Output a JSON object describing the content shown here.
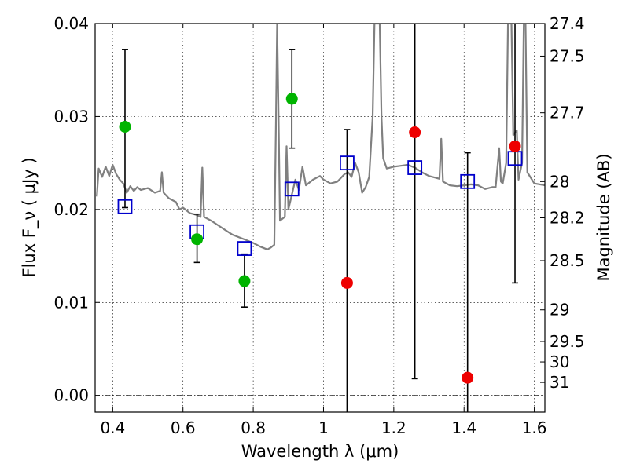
{
  "chart_data": {
    "type": "scatter",
    "xlabel": "Wavelength  λ (μm)",
    "ylabel": "Flux  F_ν  ( μJy )",
    "ylabel_right": "Magnitude (AB)",
    "xlim": [
      0.35,
      1.63
    ],
    "ylim": [
      -0.0018,
      0.04
    ],
    "grid": true,
    "x_ticks": [
      0.4,
      0.6,
      0.8,
      1.0,
      1.2,
      1.4,
      1.6
    ],
    "x_tick_labels": [
      "0.4",
      "0.6",
      "0.8",
      "1",
      "1.2",
      "1.4",
      "1.6"
    ],
    "y_ticks": [
      0.0,
      0.01,
      0.02,
      0.03,
      0.04
    ],
    "y_tick_labels": [
      "0.00",
      "0.01",
      "0.02",
      "0.03",
      "0.04"
    ],
    "mag_ticks": [
      {
        "label": "27.4",
        "flux": 0.04
      },
      {
        "label": "27.5",
        "flux": 0.0365
      },
      {
        "label": "27.7",
        "flux": 0.0304
      },
      {
        "label": "28",
        "flux": 0.023
      },
      {
        "label": "28.2",
        "flux": 0.0191
      },
      {
        "label": "28.5",
        "flux": 0.0145
      },
      {
        "label": "29",
        "flux": 0.0092
      },
      {
        "label": "29.5",
        "flux": 0.0058
      },
      {
        "label": "30",
        "flux": 0.0036
      },
      {
        "label": "31",
        "flux": 0.0014
      }
    ],
    "colors": {
      "green": "#00b400",
      "red": "#ee0000",
      "model": "#808080",
      "square": "#0000cc",
      "errorbar": "#000000"
    },
    "series": [
      {
        "marker": "circle",
        "color": "green",
        "points": [
          {
            "x": 0.435,
            "y": 0.0289,
            "ylo": 0.0202,
            "yhi": 0.0372
          },
          {
            "x": 0.64,
            "y": 0.0168,
            "ylo": 0.0143,
            "yhi": 0.0195
          },
          {
            "x": 0.775,
            "y": 0.0123,
            "ylo": 0.0095,
            "yhi": 0.0152
          },
          {
            "x": 0.91,
            "y": 0.0319,
            "ylo": 0.0266,
            "yhi": 0.0372
          }
        ]
      },
      {
        "marker": "circle",
        "color": "red",
        "points": [
          {
            "x": 1.067,
            "y": 0.0121,
            "ylo": -0.0018,
            "yhi": 0.0286
          },
          {
            "x": 1.26,
            "y": 0.0283,
            "ylo": 0.0018,
            "yhi": 0.04
          },
          {
            "x": 1.41,
            "y": 0.0019,
            "ylo": -0.0018,
            "yhi": 0.0261
          },
          {
            "x": 1.545,
            "y": 0.0268,
            "ylo": 0.0121,
            "yhi": 0.04
          }
        ]
      },
      {
        "marker": "square",
        "color": "square",
        "points": [
          {
            "x": 0.435,
            "y": 0.0203
          },
          {
            "x": 0.64,
            "y": 0.0176
          },
          {
            "x": 0.775,
            "y": 0.0158
          },
          {
            "x": 0.91,
            "y": 0.0222
          },
          {
            "x": 1.067,
            "y": 0.025
          },
          {
            "x": 1.26,
            "y": 0.0245
          },
          {
            "x": 1.41,
            "y": 0.023
          },
          {
            "x": 1.545,
            "y": 0.0255
          }
        ]
      },
      {
        "marker": "line",
        "color": "model",
        "points": [
          {
            "x": 0.355,
            "y": 0.0214
          },
          {
            "x": 0.36,
            "y": 0.0244
          },
          {
            "x": 0.37,
            "y": 0.0235
          },
          {
            "x": 0.38,
            "y": 0.0246
          },
          {
            "x": 0.39,
            "y": 0.0236
          },
          {
            "x": 0.4,
            "y": 0.0248
          },
          {
            "x": 0.41,
            "y": 0.0238
          },
          {
            "x": 0.42,
            "y": 0.0232
          },
          {
            "x": 0.43,
            "y": 0.0228
          },
          {
            "x": 0.44,
            "y": 0.0218
          },
          {
            "x": 0.45,
            "y": 0.0225
          },
          {
            "x": 0.46,
            "y": 0.022
          },
          {
            "x": 0.47,
            "y": 0.0224
          },
          {
            "x": 0.48,
            "y": 0.0221
          },
          {
            "x": 0.5,
            "y": 0.0223
          },
          {
            "x": 0.52,
            "y": 0.0218
          },
          {
            "x": 0.535,
            "y": 0.022
          },
          {
            "x": 0.54,
            "y": 0.024
          },
          {
            "x": 0.545,
            "y": 0.0218
          },
          {
            "x": 0.56,
            "y": 0.0212
          },
          {
            "x": 0.58,
            "y": 0.0208
          },
          {
            "x": 0.59,
            "y": 0.02
          },
          {
            "x": 0.6,
            "y": 0.0202
          },
          {
            "x": 0.62,
            "y": 0.0196
          },
          {
            "x": 0.64,
            "y": 0.0194
          },
          {
            "x": 0.65,
            "y": 0.0192
          },
          {
            "x": 0.655,
            "y": 0.0245
          },
          {
            "x": 0.66,
            "y": 0.0192
          },
          {
            "x": 0.68,
            "y": 0.0188
          },
          {
            "x": 0.7,
            "y": 0.0183
          },
          {
            "x": 0.72,
            "y": 0.0178
          },
          {
            "x": 0.74,
            "y": 0.0173
          },
          {
            "x": 0.76,
            "y": 0.017
          },
          {
            "x": 0.78,
            "y": 0.0167
          },
          {
            "x": 0.8,
            "y": 0.0164
          },
          {
            "x": 0.82,
            "y": 0.016
          },
          {
            "x": 0.84,
            "y": 0.0157
          },
          {
            "x": 0.85,
            "y": 0.0159
          },
          {
            "x": 0.86,
            "y": 0.0162
          },
          {
            "x": 0.865,
            "y": 0.03
          },
          {
            "x": 0.868,
            "y": 0.04
          },
          {
            "x": 0.872,
            "y": 0.03
          },
          {
            "x": 0.876,
            "y": 0.0188
          },
          {
            "x": 0.89,
            "y": 0.0192
          },
          {
            "x": 0.895,
            "y": 0.0268
          },
          {
            "x": 0.9,
            "y": 0.02
          },
          {
            "x": 0.92,
            "y": 0.0232
          },
          {
            "x": 0.93,
            "y": 0.0221
          },
          {
            "x": 0.94,
            "y": 0.0246
          },
          {
            "x": 0.95,
            "y": 0.0226
          },
          {
            "x": 0.97,
            "y": 0.0232
          },
          {
            "x": 0.99,
            "y": 0.0236
          },
          {
            "x": 1.0,
            "y": 0.0232
          },
          {
            "x": 1.02,
            "y": 0.0228
          },
          {
            "x": 1.04,
            "y": 0.023
          },
          {
            "x": 1.06,
            "y": 0.0238
          },
          {
            "x": 1.07,
            "y": 0.024
          },
          {
            "x": 1.08,
            "y": 0.0235
          },
          {
            "x": 1.09,
            "y": 0.025
          },
          {
            "x": 1.1,
            "y": 0.024
          },
          {
            "x": 1.11,
            "y": 0.0218
          },
          {
            "x": 1.12,
            "y": 0.0224
          },
          {
            "x": 1.13,
            "y": 0.0235
          },
          {
            "x": 1.14,
            "y": 0.03
          },
          {
            "x": 1.145,
            "y": 0.04
          },
          {
            "x": 1.16,
            "y": 0.04
          },
          {
            "x": 1.165,
            "y": 0.03
          },
          {
            "x": 1.17,
            "y": 0.0255
          },
          {
            "x": 1.18,
            "y": 0.0244
          },
          {
            "x": 1.2,
            "y": 0.0246
          },
          {
            "x": 1.22,
            "y": 0.0247
          },
          {
            "x": 1.24,
            "y": 0.0248
          },
          {
            "x": 1.26,
            "y": 0.0245
          },
          {
            "x": 1.28,
            "y": 0.024
          },
          {
            "x": 1.3,
            "y": 0.0236
          },
          {
            "x": 1.32,
            "y": 0.0234
          },
          {
            "x": 1.33,
            "y": 0.0233
          },
          {
            "x": 1.335,
            "y": 0.0276
          },
          {
            "x": 1.34,
            "y": 0.023
          },
          {
            "x": 1.36,
            "y": 0.0226
          },
          {
            "x": 1.38,
            "y": 0.0225
          },
          {
            "x": 1.4,
            "y": 0.0226
          },
          {
            "x": 1.42,
            "y": 0.0227
          },
          {
            "x": 1.44,
            "y": 0.0226
          },
          {
            "x": 1.46,
            "y": 0.0222
          },
          {
            "x": 1.48,
            "y": 0.0224
          },
          {
            "x": 1.49,
            "y": 0.0224
          },
          {
            "x": 1.5,
            "y": 0.0266
          },
          {
            "x": 1.505,
            "y": 0.023
          },
          {
            "x": 1.51,
            "y": 0.0228
          },
          {
            "x": 1.52,
            "y": 0.025
          },
          {
            "x": 1.525,
            "y": 0.04
          },
          {
            "x": 1.535,
            "y": 0.04
          },
          {
            "x": 1.54,
            "y": 0.028
          },
          {
            "x": 1.55,
            "y": 0.0285
          },
          {
            "x": 1.555,
            "y": 0.0232
          },
          {
            "x": 1.565,
            "y": 0.025
          },
          {
            "x": 1.57,
            "y": 0.04
          },
          {
            "x": 1.575,
            "y": 0.04
          },
          {
            "x": 1.58,
            "y": 0.024
          },
          {
            "x": 1.6,
            "y": 0.0228
          },
          {
            "x": 1.63,
            "y": 0.0226
          }
        ]
      }
    ]
  }
}
